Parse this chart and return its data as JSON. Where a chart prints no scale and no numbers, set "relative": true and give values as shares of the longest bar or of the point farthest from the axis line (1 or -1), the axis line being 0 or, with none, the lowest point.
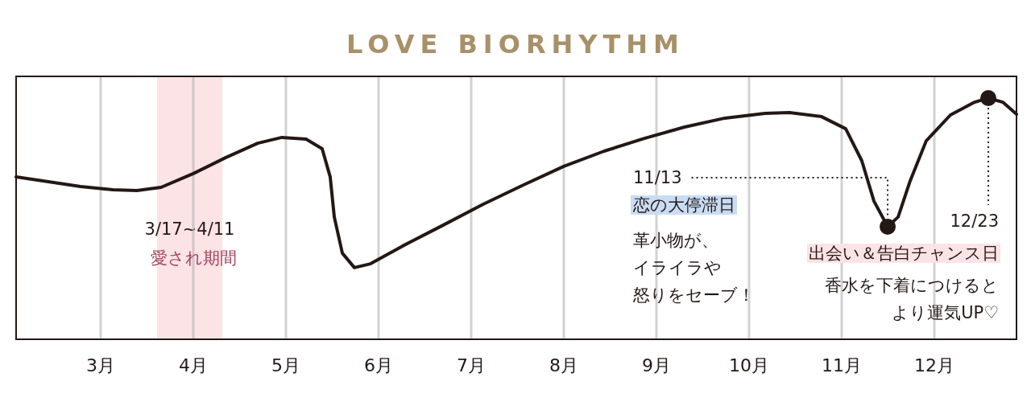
{
  "chart_data": {
    "type": "line",
    "title": "LOVE BIORHYTHM",
    "relative": true,
    "grid": "x",
    "x": [
      2.087,
      2.435,
      2.783,
      3.13,
      3.391,
      3.652,
      4.0,
      4.348,
      4.696,
      4.957,
      5.217,
      5.391,
      5.478,
      5.522,
      5.609,
      5.739,
      5.913,
      6.261,
      6.696,
      7.13,
      7.565,
      8.0,
      8.435,
      8.87,
      9.304,
      9.739,
      10.174,
      10.435,
      10.783,
      11.043,
      11.217,
      11.348,
      11.496,
      11.609,
      11.739,
      11.913,
      12.174,
      12.435,
      12.583,
      12.739,
      12.887
    ],
    "xlim": [
      2.087,
      12.887
    ],
    "xticks": [
      {
        "value": 3,
        "label": "3月"
      },
      {
        "value": 4,
        "label": "4月"
      },
      {
        "value": 5,
        "label": "5月"
      },
      {
        "value": 6,
        "label": "6月"
      },
      {
        "value": 7,
        "label": "7月"
      },
      {
        "value": 8,
        "label": "8月"
      },
      {
        "value": 9,
        "label": "9月"
      },
      {
        "value": 10,
        "label": "10月"
      },
      {
        "value": 11,
        "label": "11月"
      },
      {
        "value": 12,
        "label": "12月"
      }
    ],
    "series": [
      {
        "color": "#231815",
        "values": [
          0.673,
          0.653,
          0.633,
          0.62,
          0.617,
          0.63,
          0.687,
          0.753,
          0.813,
          0.837,
          0.83,
          0.79,
          0.673,
          0.507,
          0.357,
          0.297,
          0.313,
          0.387,
          0.473,
          0.56,
          0.64,
          0.717,
          0.78,
          0.833,
          0.88,
          0.917,
          0.937,
          0.94,
          0.923,
          0.873,
          0.74,
          0.573,
          0.467,
          0.507,
          0.657,
          0.823,
          0.93,
          0.983,
          1,
          0.983,
          0.933
        ]
      },
      {
        "type": "scatter",
        "marker": "circle",
        "color": "#231815",
        "x": [
          11.496,
          12.583
        ],
        "values": [
          0.467,
          1
        ]
      }
    ],
    "bands": [
      {
        "axis": "x",
        "from": 3.609,
        "to": 4.313,
        "label": "3/17~4/11",
        "color": "#fbe3e6"
      }
    ],
    "annotations": [
      "愛され期間",
      "11/13",
      "恋の大停滞日",
      "革小物が、イライラや怒りをセーブ！",
      "12/23",
      "出会い＆告白チャンス日",
      "香水を下着につけるとより運気UP♡"
    ]
  }
}
